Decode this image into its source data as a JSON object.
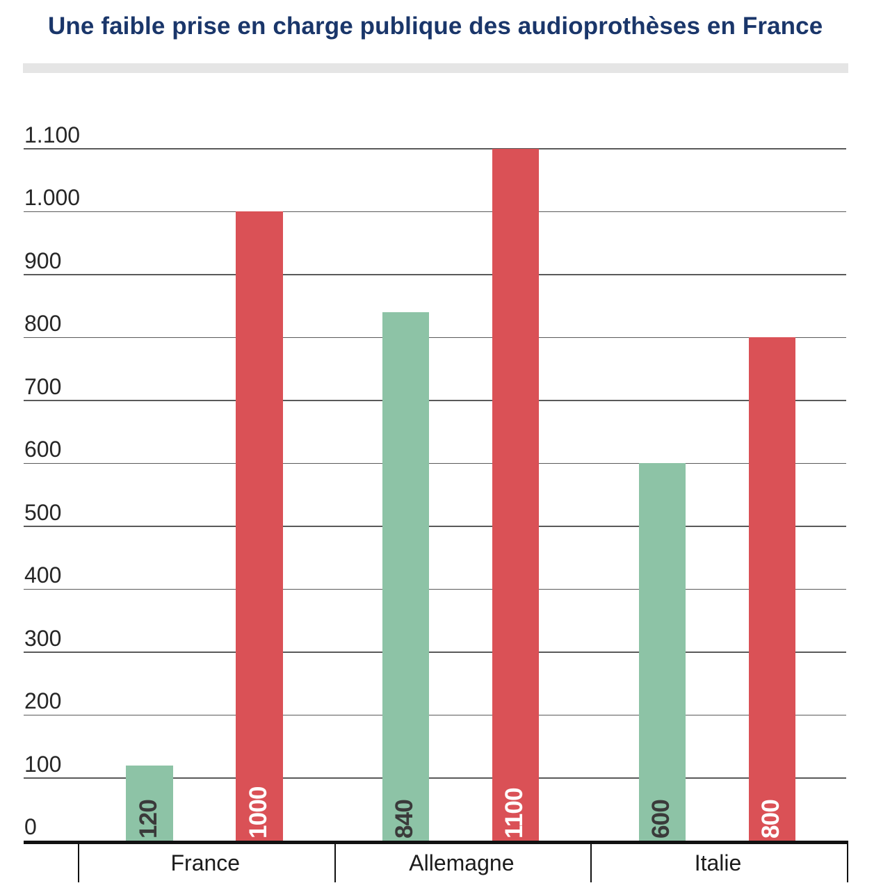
{
  "title": {
    "text": "Une faible prise en charge publique des audioprothèses en France",
    "color": "#1a366a"
  },
  "subtitle_bar": {
    "color": "#e5e5e5"
  },
  "chart_data": {
    "type": "bar",
    "title": "Une faible prise en charge publique des audioprothèses en France",
    "categories": [
      "France",
      "Allemagne",
      "Italie"
    ],
    "series": [
      {
        "name": "series-green",
        "color": "#8dc3a6",
        "label_color": "#3a3a3a",
        "values": [
          120,
          840,
          600
        ]
      },
      {
        "name": "series-red",
        "color": "#da5156",
        "label_color": "#ffffff",
        "values": [
          1000,
          1100,
          800
        ]
      }
    ],
    "value_labels": [
      "120",
      "1000",
      "840",
      "1100",
      "600",
      "800"
    ],
    "y_ticks": [
      0,
      100,
      200,
      300,
      400,
      500,
      600,
      700,
      800,
      900,
      1000,
      1100
    ],
    "y_tick_labels": [
      "0",
      "100",
      "200",
      "300",
      "400",
      "500",
      "600",
      "700",
      "800",
      "900",
      "1.000",
      "1.100"
    ],
    "ylim": [
      0,
      1100
    ],
    "xlabel": "",
    "ylabel": "",
    "grid": "horizontal",
    "legend": "none",
    "grid_color": "#595959",
    "axis_color": "#111111",
    "tick_label_color": "#262626",
    "category_label_color": "#1c1c1c"
  }
}
